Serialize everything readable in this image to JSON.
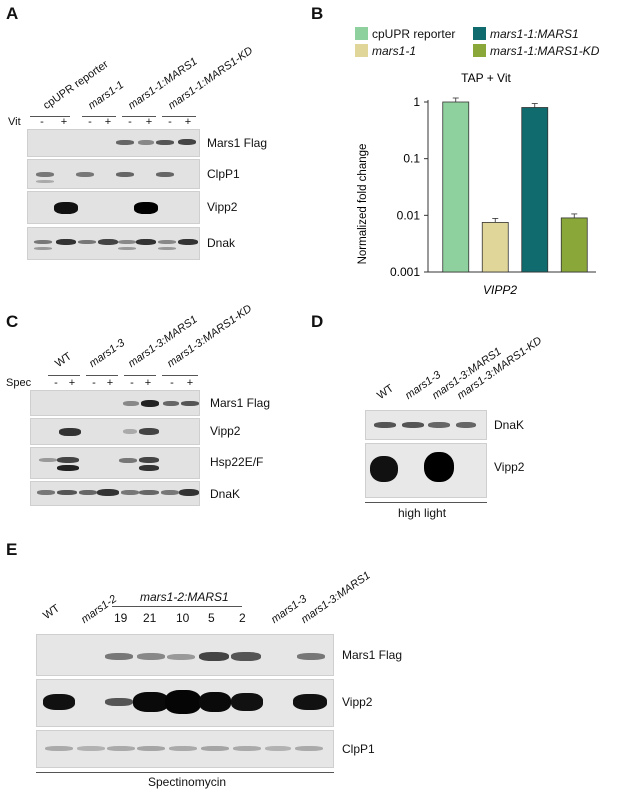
{
  "panels": {
    "A": {
      "letter": "A",
      "strains": [
        "cpUPR reporter",
        "mars1-1",
        "mars1-1:MARS1",
        "mars1-1:MARS1-KD"
      ],
      "treatment": "Vit",
      "minus": "-",
      "plus": "+",
      "rows": [
        "Mars1 Flag",
        "ClpP1",
        "Vipp2",
        "Dnak"
      ]
    },
    "B": {
      "letter": "B",
      "legend": [
        {
          "name": "cpUPR reporter",
          "color": "#8fd19e"
        },
        {
          "name": "mars1-1:MARS1",
          "color": "#0f6b6e"
        },
        {
          "name": "mars1-1",
          "color": "#e0d69a"
        },
        {
          "name": "mars1-1:MARS1-KD",
          "color": "#8aa83a"
        }
      ]
    },
    "C": {
      "letter": "C",
      "strains": [
        "WT",
        "mars1-3",
        "mars1-3:MARS1",
        "mars1-3:MARS1-KD"
      ],
      "treatment": "Spec",
      "minus": "-",
      "plus": "+",
      "rows": [
        "Mars1 Flag",
        "Vipp2",
        "Hsp22E/F",
        "DnaK"
      ]
    },
    "D": {
      "letter": "D",
      "strains": [
        "WT",
        "mars1-3",
        "mars1-3:MARS1",
        "mars1-3:MARS1-KD"
      ],
      "rows": [
        "DnaK",
        "Vipp2"
      ],
      "condition": "high light"
    },
    "E": {
      "letter": "E",
      "lanes_left": [
        "WT",
        "mars1-2"
      ],
      "group_label": "mars1-2:MARS1",
      "group_lanes": [
        "19",
        "21",
        "10",
        "5",
        "2"
      ],
      "lanes_right": [
        "mars1-3",
        "mars1-3:MARS1"
      ],
      "rows": [
        "Mars1 Flag",
        "Vipp2",
        "ClpP1"
      ],
      "condition": "Spectinomycin"
    }
  },
  "chart_data": {
    "type": "bar",
    "title": "TAP + Vit",
    "xlabel": "VIPP2",
    "ylabel": "Normalized fold change",
    "yscale": "log",
    "ylim": [
      0.001,
      1
    ],
    "yticks": [
      "1",
      "0.1",
      "0.01",
      "0.001"
    ],
    "categories": [
      "cpUPR reporter",
      "mars1-1",
      "mars1-1:MARS1",
      "mars1-1:MARS1-KD"
    ],
    "values": [
      1.0,
      0.0075,
      0.8,
      0.009
    ],
    "colors": [
      "#8fd19e",
      "#e0d69a",
      "#0f6b6e",
      "#8aa83a"
    ],
    "grid": false
  }
}
